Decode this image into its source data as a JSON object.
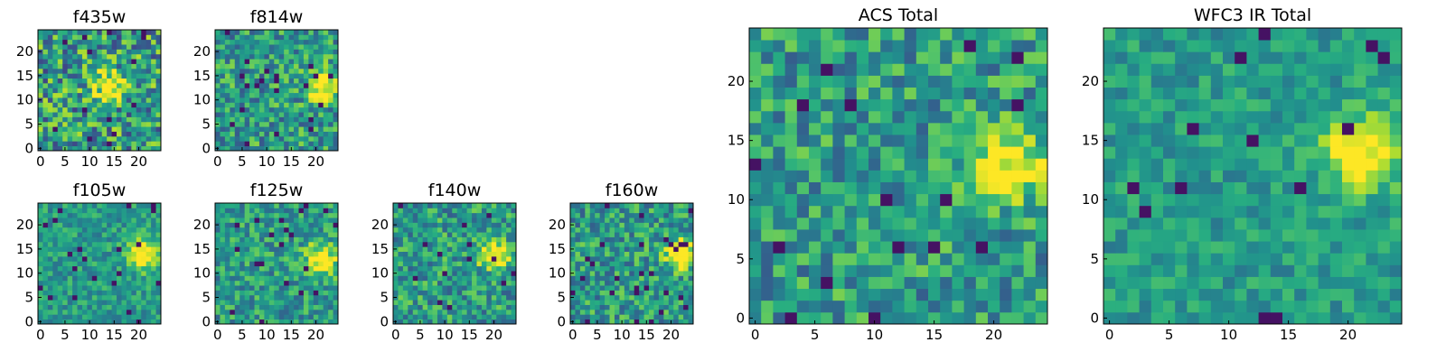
{
  "chart_data": [
    {
      "type": "heatmap",
      "title": "f435w",
      "xlim": [
        0,
        24
      ],
      "ylim": [
        0,
        24
      ],
      "x_ticks": [
        "0",
        "5",
        "10",
        "15",
        "20"
      ],
      "y_ticks": [
        "0",
        "5",
        "10",
        "15",
        "20"
      ],
      "colormap": "viridis",
      "hotspot": [
        14,
        13
      ],
      "noise": 0.7,
      "seed": 11
    },
    {
      "type": "heatmap",
      "title": "f814w",
      "xlim": [
        0,
        24
      ],
      "ylim": [
        0,
        24
      ],
      "x_ticks": [
        "0",
        "5",
        "10",
        "15",
        "20"
      ],
      "y_ticks": [
        "0",
        "5",
        "10",
        "15",
        "20"
      ],
      "colormap": "viridis",
      "hotspot": [
        21,
        13
      ],
      "noise": 0.55,
      "seed": 23
    },
    {
      "type": "heatmap",
      "title": "f105w",
      "xlim": [
        0,
        24
      ],
      "ylim": [
        0,
        24
      ],
      "x_ticks": [
        "0",
        "5",
        "10",
        "15",
        "20"
      ],
      "y_ticks": [
        "0",
        "5",
        "10",
        "15",
        "20"
      ],
      "colormap": "viridis",
      "hotspot": [
        21,
        14
      ],
      "noise": 0.35,
      "seed": 37
    },
    {
      "type": "heatmap",
      "title": "f125w",
      "xlim": [
        0,
        24
      ],
      "ylim": [
        0,
        24
      ],
      "x_ticks": [
        "0",
        "5",
        "10",
        "15",
        "20"
      ],
      "y_ticks": [
        "0",
        "5",
        "10",
        "15",
        "20"
      ],
      "colormap": "viridis",
      "hotspot": [
        21,
        13
      ],
      "noise": 0.45,
      "seed": 41
    },
    {
      "type": "heatmap",
      "title": "f140w",
      "xlim": [
        0,
        24
      ],
      "ylim": [
        0,
        24
      ],
      "x_ticks": [
        "0",
        "5",
        "10",
        "15",
        "20"
      ],
      "y_ticks": [
        "0",
        "5",
        "10",
        "15",
        "20"
      ],
      "colormap": "viridis",
      "hotspot": [
        20,
        14
      ],
      "noise": 0.5,
      "seed": 53
    },
    {
      "type": "heatmap",
      "title": "f160w",
      "xlim": [
        0,
        24
      ],
      "ylim": [
        0,
        24
      ],
      "x_ticks": [
        "0",
        "5",
        "10",
        "15",
        "20"
      ],
      "y_ticks": [
        "0",
        "5",
        "10",
        "15",
        "20"
      ],
      "colormap": "viridis",
      "hotspot": [
        22,
        14
      ],
      "noise": 0.5,
      "seed": 67
    },
    {
      "type": "heatmap",
      "title": "ACS Total",
      "xlim": [
        0,
        24
      ],
      "ylim": [
        0,
        24
      ],
      "x_ticks": [
        "0",
        "5",
        "10",
        "15",
        "20"
      ],
      "y_ticks": [
        "0",
        "5",
        "10",
        "15",
        "20"
      ],
      "colormap": "viridis",
      "hotspot": [
        21,
        13
      ],
      "noise": 0.5,
      "seed": 79
    },
    {
      "type": "heatmap",
      "title": "WFC3 IR Total",
      "xlim": [
        0,
        24
      ],
      "ylim": [
        0,
        24
      ],
      "x_ticks": [
        "0",
        "5",
        "10",
        "15",
        "20"
      ],
      "y_ticks": [
        "0",
        "5",
        "10",
        "15",
        "20"
      ],
      "colormap": "viridis",
      "hotspot": [
        21,
        14
      ],
      "noise": 0.3,
      "seed": 97
    }
  ]
}
